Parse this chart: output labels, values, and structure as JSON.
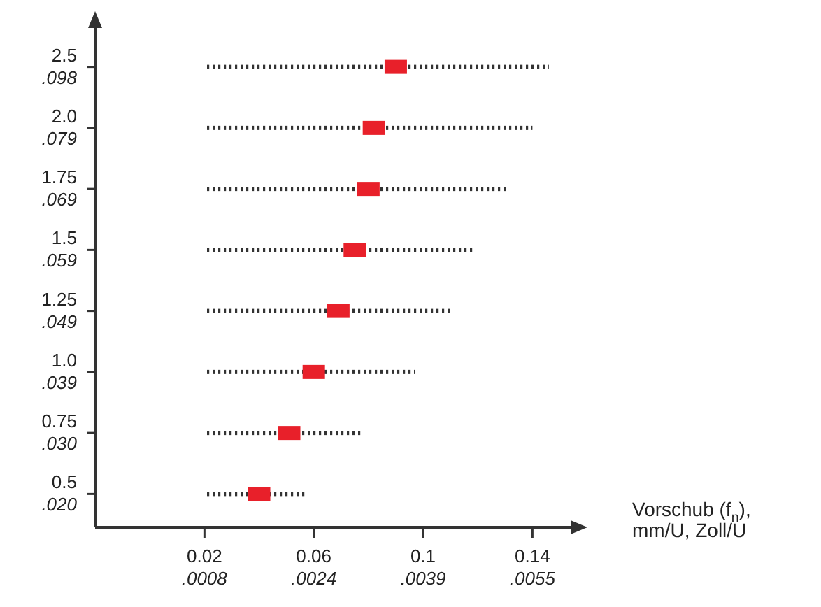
{
  "chart_data": {
    "type": "bar",
    "orientation": "horizontal",
    "xlabel": "Vorschub (f$_{n}$),\nmm/U, Zoll/U",
    "categories": [
      "2.5\n.098",
      "2.0\n.079",
      "1.75\n.069",
      "1.5\n.059",
      "1.25\n.049",
      "1.0\n.039",
      "0.75\n.030",
      "0.5\n.020"
    ],
    "xlim": [
      -0.02,
      0.155
    ],
    "xticks": [
      0.02,
      0.06,
      0.1,
      0.14
    ],
    "x2lim": [
      -0.000787,
      0.006102
    ],
    "x2ticks": [
      {
        "value": 0.000787,
        "label": ".0008"
      },
      {
        "value": 0.002362,
        "label": ".0024"
      },
      {
        "value": 0.003937,
        "label": ".0039"
      },
      {
        "value": 0.005512,
        "label": ".0055"
      }
    ],
    "series": [
      {
        "color": "#333333",
        "line_style": "dotted",
        "base": [
          0.02,
          0.02,
          0.02,
          0.02,
          0.02,
          0.02,
          0.02,
          0.02
        ],
        "values": [
          0.126,
          0.12,
          0.111,
          0.099,
          0.09,
          0.077,
          0.058,
          0.037
        ]
      },
      {
        "type": "scatter",
        "color": "#e8202a",
        "marker": "square",
        "values": [
          0.09,
          0.082,
          0.08,
          0.075,
          0.069,
          0.06,
          0.051,
          0.04
        ]
      }
    ]
  }
}
